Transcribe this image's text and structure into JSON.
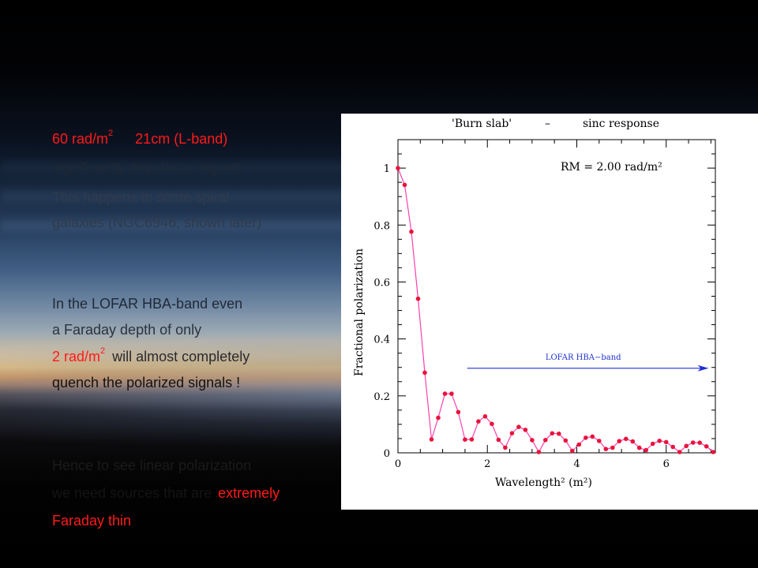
{
  "text_left": {
    "line1_value": "60 rad/m",
    "line1_sup": "2",
    "line1_band": "21cm (L-band)",
    "line2": "significantly depolarize signals",
    "line3": "This happens in some spiral",
    "line4": "galaxies (NGC6946, shown later)",
    "p2_line1": "In the LOFAR HBA-band even",
    "p2_line2": "a Faraday depth of only",
    "p2_line3_value": "2 rad/m",
    "p2_line3_sup": "2",
    "p2_line3_rest": "will almost completely",
    "p2_line4": "quench the polarized signals  !",
    "p3_line1": "Hence to see linear polarization",
    "p3_line2_dim": "we need sources that are",
    "p3_line2_red": "extremely",
    "p3_line3": "Faraday thin"
  },
  "chart_data": {
    "type": "line",
    "title_left": "'Burn slab'",
    "title_dash": "–",
    "title_right": "sinc response",
    "annotation": "RM = 2.00 rad/m²",
    "arrow_label": "LOFAR HBA−band",
    "xlabel": "Wavelength²  (m²)",
    "ylabel": "Fractional polarization",
    "xlim": [
      0,
      7.1
    ],
    "ylim": [
      0,
      1.1
    ],
    "x_ticks": [
      0,
      2,
      4,
      6
    ],
    "y_ticks": [
      0,
      0.2,
      0.4,
      0.6,
      0.8,
      1
    ],
    "y_tick_labels": [
      "0",
      "0.2",
      "0.4",
      "0.6",
      "0.8",
      "1"
    ],
    "arrow_from_x": 1.55,
    "arrow_to_x": 6.95,
    "arrow_y": 0.297,
    "rm": 2.0,
    "x_start": 0.0,
    "x_step": 0.15,
    "n_points": 48,
    "line_color": "#ff3fb0",
    "marker_color": "#e8143c",
    "arrow_color": "#1e2fd0"
  }
}
